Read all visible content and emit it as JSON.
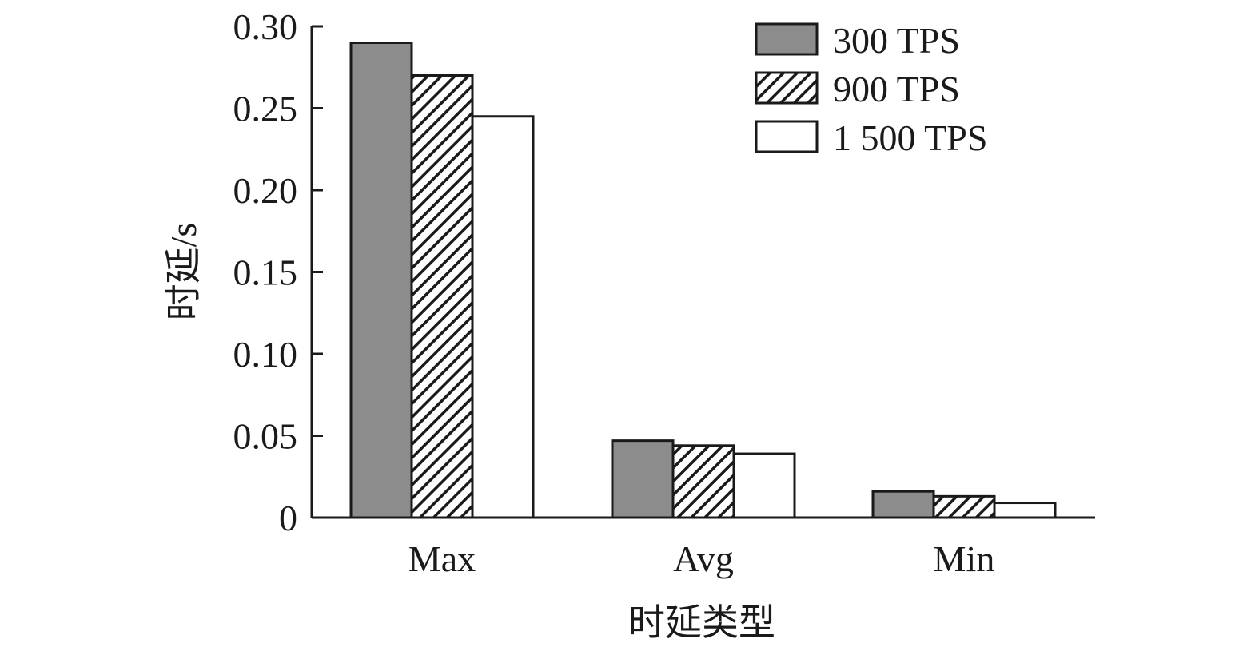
{
  "chart_data": {
    "type": "bar",
    "categories": [
      "Max",
      "Avg",
      "Min"
    ],
    "series": [
      {
        "name": "300 TPS",
        "values": [
          0.29,
          0.047,
          0.016
        ],
        "color": "#8c8c8c",
        "fill": "solid"
      },
      {
        "name": "900 TPS",
        "values": [
          0.27,
          0.044,
          0.013
        ],
        "color": "#1a1a1a",
        "fill": "hatch"
      },
      {
        "name": "1 500 TPS",
        "values": [
          0.245,
          0.039,
          0.009
        ],
        "color": "#ffffff",
        "fill": "solid"
      }
    ],
    "xlabel": "时延类型",
    "ylabel": "时延/s",
    "ylim": [
      0,
      0.3
    ],
    "yticks": [
      0,
      0.05,
      0.1,
      0.15,
      0.2,
      0.25,
      0.3
    ],
    "ytick_labels": [
      "0",
      "0.05",
      "0.10",
      "0.15",
      "0.20",
      "0.25",
      "0.30"
    ],
    "grid": false,
    "legend_position": "top-right"
  }
}
